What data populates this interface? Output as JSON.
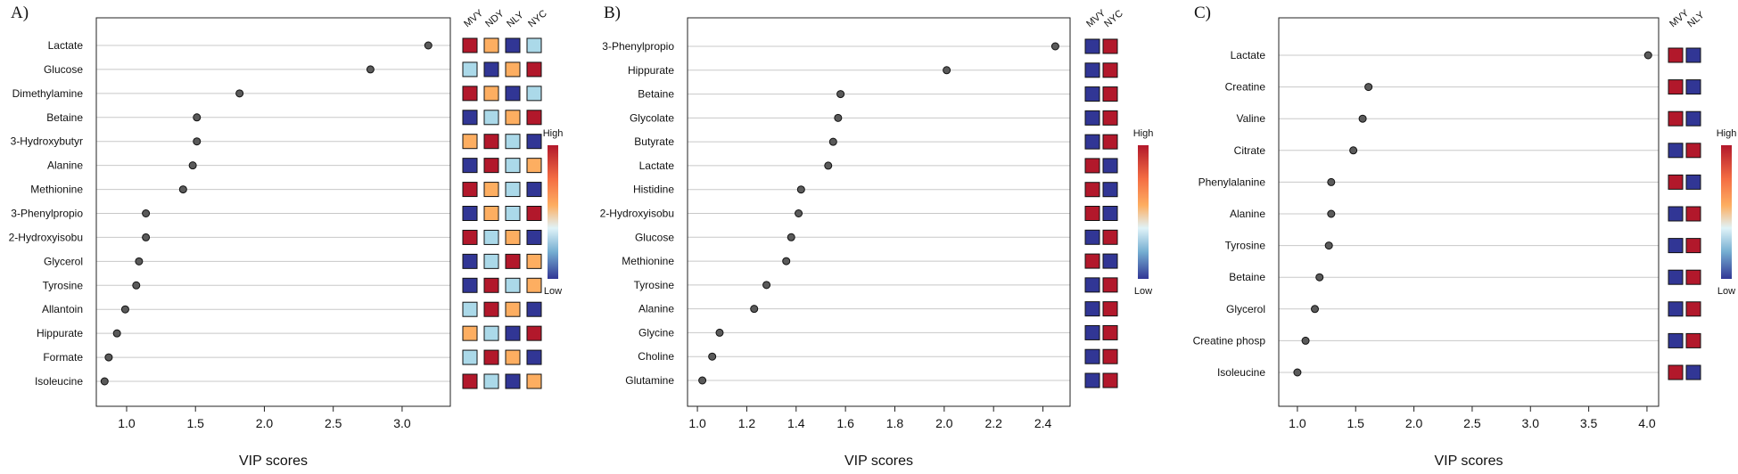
{
  "colors": {
    "high": "#b2182b",
    "mid_high": "#fdae61",
    "mid_low": "#abd9e9",
    "low": "#313695",
    "point": "#5a5a5a",
    "gridline": "#c8c8c8"
  },
  "legend": {
    "high_label": "High",
    "low_label": "Low"
  },
  "chart_data": [
    {
      "type": "scatter",
      "panel": "A)",
      "xlabel": "VIP scores",
      "xlim": [
        0.78,
        3.35
      ],
      "xticks": [
        1.0,
        1.5,
        2.0,
        2.5,
        3.0
      ],
      "xtick_labels": [
        "1.0",
        "1.5",
        "2.0",
        "2.5",
        "3.0"
      ],
      "groups": [
        "MVY",
        "NDY",
        "NLY",
        "NYC"
      ],
      "categories": [
        "Lactate",
        "Glucose",
        "Dimethylamine",
        "Betaine",
        "3-Hydroxybutyr",
        "Alanine",
        "Methionine",
        "3-Phenylpropio",
        "2-Hydroxyisobu",
        "Glycerol",
        "Tyrosine",
        "Allantoin",
        "Hippurate",
        "Formate",
        "Isoleucine"
      ],
      "values": [
        3.19,
        2.77,
        1.82,
        1.51,
        1.51,
        1.48,
        1.41,
        1.14,
        1.14,
        1.09,
        1.07,
        0.99,
        0.93,
        0.87,
        0.84
      ],
      "heatmap": [
        [
          1,
          0.6,
          0,
          0.3
        ],
        [
          0.3,
          0,
          0.6,
          1
        ],
        [
          1,
          0.6,
          0,
          0.3
        ],
        [
          0,
          0.3,
          0.6,
          1
        ],
        [
          0.6,
          1,
          0.3,
          0
        ],
        [
          0,
          1,
          0.3,
          0.6
        ],
        [
          1,
          0.6,
          0.3,
          0
        ],
        [
          0,
          0.6,
          0.3,
          1
        ],
        [
          1,
          0.3,
          0.6,
          0
        ],
        [
          0,
          0.3,
          1,
          0.6
        ],
        [
          0,
          1,
          0.3,
          0.6
        ],
        [
          0.3,
          1,
          0.6,
          0
        ],
        [
          0.6,
          0.3,
          0,
          1
        ],
        [
          0.3,
          1,
          0.6,
          0
        ],
        [
          1,
          0.3,
          0,
          0.6
        ]
      ]
    },
    {
      "type": "scatter",
      "panel": "B)",
      "xlabel": "VIP scores",
      "xlim": [
        0.96,
        2.51
      ],
      "xticks": [
        1.0,
        1.2,
        1.4,
        1.6,
        1.8,
        2.0,
        2.2,
        2.4
      ],
      "xtick_labels": [
        "1.0",
        "1.2",
        "1.4",
        "1.6",
        "1.8",
        "2.0",
        "2.2",
        "2.4"
      ],
      "groups": [
        "MVY",
        "NYC"
      ],
      "categories": [
        "3-Phenylpropio",
        "Hippurate",
        "Betaine",
        "Glycolate",
        "Butyrate",
        "Lactate",
        "Histidine",
        "2-Hydroxyisobu",
        "Glucose",
        "Methionine",
        "Tyrosine",
        "Alanine",
        "Glycine",
        "Choline",
        "Glutamine"
      ],
      "values": [
        2.45,
        2.01,
        1.58,
        1.57,
        1.55,
        1.53,
        1.42,
        1.41,
        1.38,
        1.36,
        1.28,
        1.23,
        1.09,
        1.06,
        1.02
      ],
      "heatmap": [
        [
          0,
          1
        ],
        [
          0,
          1
        ],
        [
          0,
          1
        ],
        [
          0,
          1
        ],
        [
          0,
          1
        ],
        [
          1,
          0
        ],
        [
          1,
          0
        ],
        [
          1,
          0
        ],
        [
          0,
          1
        ],
        [
          1,
          0
        ],
        [
          0,
          1
        ],
        [
          0,
          1
        ],
        [
          0,
          1
        ],
        [
          0,
          1
        ],
        [
          0,
          1
        ]
      ]
    },
    {
      "type": "scatter",
      "panel": "C)",
      "xlabel": "VIP scores",
      "xlim": [
        0.84,
        4.1
      ],
      "xticks": [
        1.0,
        1.5,
        2.0,
        2.5,
        3.0,
        3.5,
        4.0
      ],
      "xtick_labels": [
        "1.0",
        "1.5",
        "2.0",
        "2.5",
        "3.0",
        "3.5",
        "4.0"
      ],
      "groups": [
        "MVY",
        "NLY"
      ],
      "categories": [
        "Lactate",
        "Creatine",
        "Valine",
        "Citrate",
        "Phenylalanine",
        "Alanine",
        "Tyrosine",
        "Betaine",
        "Glycerol",
        "Creatine phosp",
        "Isoleucine"
      ],
      "values": [
        4.01,
        1.61,
        1.56,
        1.48,
        1.29,
        1.29,
        1.27,
        1.19,
        1.15,
        1.07,
        1.0
      ],
      "heatmap": [
        [
          1,
          0
        ],
        [
          1,
          0
        ],
        [
          1,
          0
        ],
        [
          0,
          1
        ],
        [
          1,
          0
        ],
        [
          0,
          1
        ],
        [
          0,
          1
        ],
        [
          0,
          1
        ],
        [
          0,
          1
        ],
        [
          0,
          1
        ],
        [
          1,
          0
        ]
      ]
    }
  ]
}
